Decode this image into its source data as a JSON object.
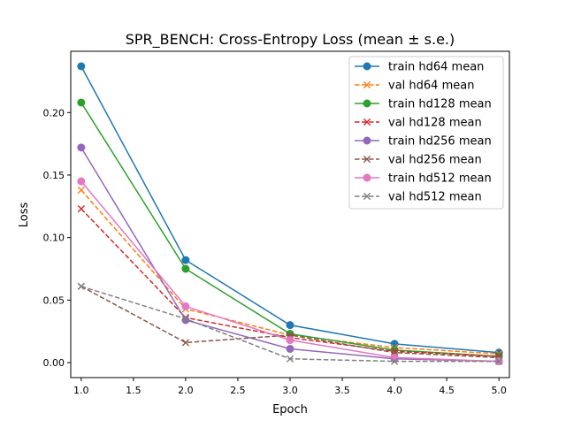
{
  "chart_data": {
    "type": "line",
    "title": "SPR_BENCH: Cross-Entropy Loss (mean ± s.e.)",
    "xlabel": "Epoch",
    "ylabel": "Loss",
    "xlim": [
      0.9,
      5.1
    ],
    "ylim": [
      -0.012,
      0.249
    ],
    "xticks": [
      1.0,
      1.5,
      2.0,
      2.5,
      3.0,
      3.5,
      4.0,
      4.5,
      5.0
    ],
    "xtick_labels": [
      "1.0",
      "1.5",
      "2.0",
      "2.5",
      "3.0",
      "3.5",
      "4.0",
      "4.5",
      "5.0"
    ],
    "yticks": [
      0.0,
      0.05,
      0.1,
      0.15,
      0.2
    ],
    "ytick_labels": [
      "0.00",
      "0.05",
      "0.10",
      "0.15",
      "0.20"
    ],
    "grid": false,
    "legend_position": "top-right",
    "x": [
      1,
      2,
      3,
      4,
      5
    ],
    "series": [
      {
        "name": "train hd64 mean",
        "color": "#1f77b4",
        "dash": "solid",
        "marker": "circle",
        "values": [
          0.237,
          0.082,
          0.03,
          0.015,
          0.008
        ]
      },
      {
        "name": "val hd64 mean",
        "color": "#ff7f0e",
        "dash": "dashed",
        "marker": "x",
        "values": [
          0.138,
          0.043,
          0.022,
          0.012,
          0.007
        ]
      },
      {
        "name": "train hd128 mean",
        "color": "#2ca02c",
        "dash": "solid",
        "marker": "circle",
        "values": [
          0.208,
          0.075,
          0.023,
          0.01,
          0.005
        ]
      },
      {
        "name": "val hd128 mean",
        "color": "#d62728",
        "dash": "dashed",
        "marker": "x",
        "values": [
          0.123,
          0.036,
          0.02,
          0.009,
          0.005
        ]
      },
      {
        "name": "train hd256 mean",
        "color": "#9467bd",
        "dash": "solid",
        "marker": "circle",
        "values": [
          0.172,
          0.034,
          0.011,
          0.003,
          0.001
        ]
      },
      {
        "name": "val hd256 mean",
        "color": "#8c564b",
        "dash": "dashed",
        "marker": "x",
        "values": [
          0.061,
          0.016,
          0.022,
          0.008,
          0.004
        ]
      },
      {
        "name": "train hd512 mean",
        "color": "#e377c2",
        "dash": "solid",
        "marker": "circle",
        "values": [
          0.145,
          0.045,
          0.018,
          0.004,
          0.001
        ]
      },
      {
        "name": "val hd512 mean",
        "color": "#7f7f7f",
        "dash": "dashed",
        "marker": "x",
        "values": [
          0.061,
          0.035,
          0.003,
          0.001,
          0.001
        ]
      }
    ]
  }
}
